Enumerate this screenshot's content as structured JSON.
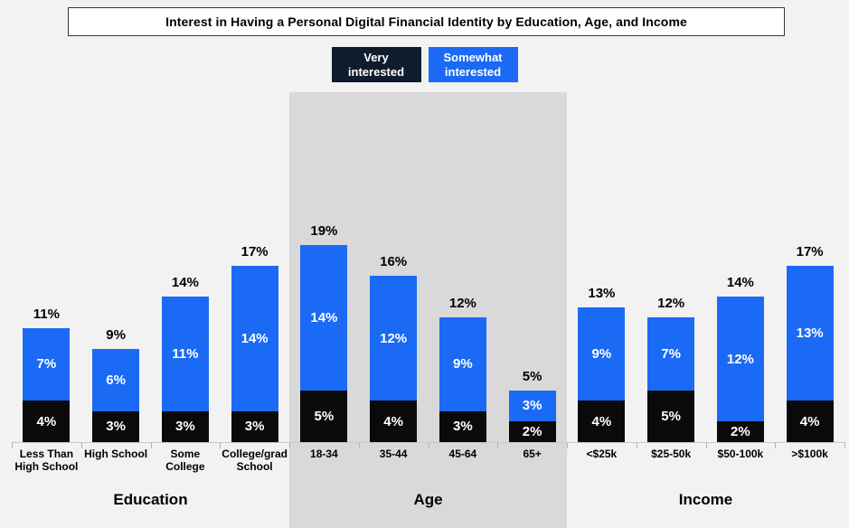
{
  "title": "Interest in Having a Personal Digital Financial Identity by Education, Age, and Income",
  "legend": {
    "very_label": "Very\ninterested",
    "somewhat_label": "Somewhat\ninterested"
  },
  "colors": {
    "background": "#f2f2f2",
    "highlight_band": "#d9d9d9",
    "very_bar": "#0a0a0a",
    "very_legend": "#0f1c2e",
    "somewhat_bar": "#1b6af5",
    "axis_line": "#c9c9c9",
    "axis_tick": "#b5b5b5",
    "title_border": "#3a3a3a",
    "bar_label_text": "#ffffff",
    "label_text": "#000000"
  },
  "chart_data": {
    "type": "bar",
    "stacked": true,
    "title": "Interest in Having a Personal Digital Financial Identity by Education, Age, and Income",
    "value_suffix": "%",
    "ylim": [
      0,
      20
    ],
    "grid": false,
    "legend_position": "top-center",
    "categories": [
      "Less Than High School",
      "High School",
      "Some College",
      "College/grad School",
      "18-34",
      "35-44",
      "45-64",
      "65+",
      "<$25k",
      "$25-50k",
      "$50-100k",
      ">$100k"
    ],
    "category_label_lines": [
      [
        "Less Than",
        "High School"
      ],
      [
        "High School"
      ],
      [
        "Some",
        "College"
      ],
      [
        "College/grad",
        "School"
      ],
      [
        "18-34"
      ],
      [
        "35-44"
      ],
      [
        "45-64"
      ],
      [
        "65+"
      ],
      [
        "<$25k"
      ],
      [
        "$25-50k"
      ],
      [
        "$50-100k"
      ],
      [
        ">$100k"
      ]
    ],
    "series": [
      {
        "name": "Very interested",
        "values": [
          4,
          3,
          3,
          3,
          5,
          4,
          3,
          2,
          4,
          5,
          2,
          4
        ]
      },
      {
        "name": "Somewhat interested",
        "values": [
          7,
          6,
          11,
          14,
          14,
          12,
          9,
          3,
          9,
          7,
          12,
          13
        ]
      }
    ],
    "totals": [
      11,
      9,
      14,
      17,
      19,
      16,
      12,
      5,
      13,
      12,
      14,
      17
    ],
    "groups": [
      {
        "label": "Education",
        "span": [
          0,
          3
        ],
        "highlighted": false
      },
      {
        "label": "Age",
        "span": [
          4,
          7
        ],
        "highlighted": true
      },
      {
        "label": "Income",
        "span": [
          8,
          11
        ],
        "highlighted": false
      }
    ]
  }
}
